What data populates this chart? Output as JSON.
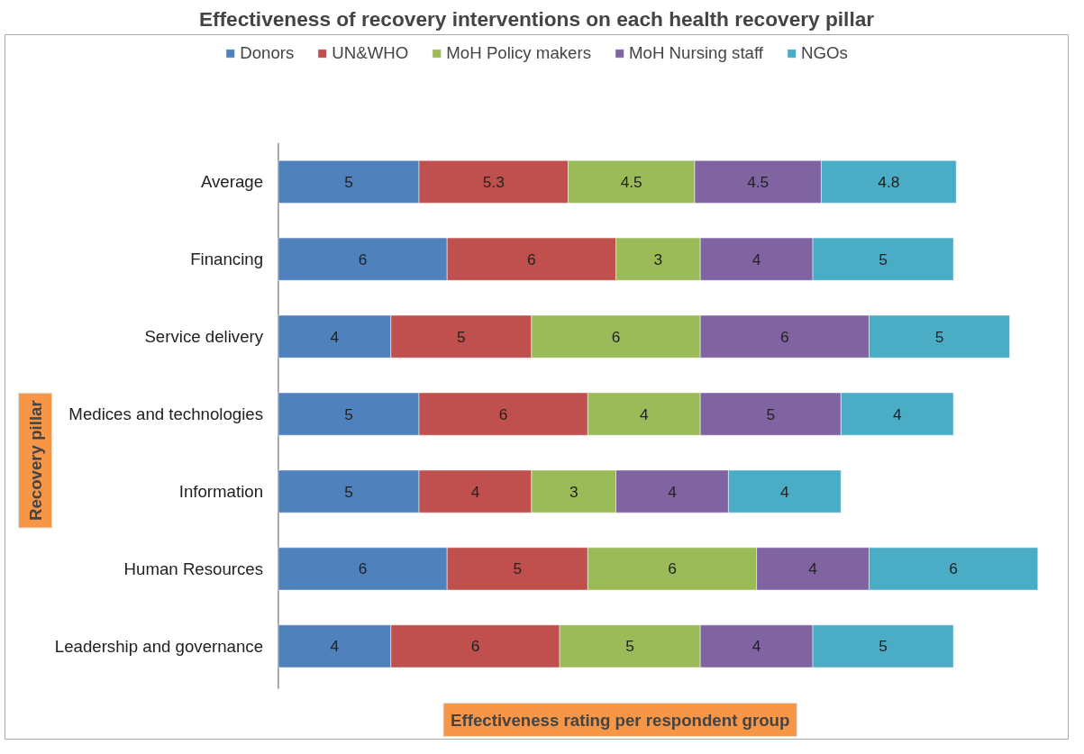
{
  "chart_data": {
    "type": "bar",
    "orientation": "horizontal",
    "stacked": true,
    "data_labels": true,
    "grid": false,
    "legend": "top",
    "title": "Effectiveness of recovery interventions on each health recovery pillar",
    "xlabel": "Effectiveness rating per respondent group",
    "ylabel": "Recovery pillar",
    "categories": [
      "Average",
      "Financing",
      "Service delivery",
      "Medices and technologies",
      "Information",
      "Human Resources",
      "Leadership and governance"
    ],
    "series": [
      {
        "name": "Donors",
        "color": "#4f81bd",
        "values": [
          5,
          6,
          4,
          5,
          5,
          6,
          4
        ]
      },
      {
        "name": "UN&WHO",
        "color": "#c0504d",
        "values": [
          5.3,
          6,
          5,
          6,
          4,
          5,
          6
        ]
      },
      {
        "name": "MoH Policy makers",
        "color": "#9bbb59",
        "values": [
          4.5,
          3,
          6,
          4,
          3,
          6,
          5
        ]
      },
      {
        "name": "MoH Nursing staff",
        "color": "#8064a2",
        "values": [
          4.5,
          4,
          6,
          5,
          4,
          4,
          4
        ]
      },
      {
        "name": "NGOs",
        "color": "#4bacc6",
        "values": [
          4.8,
          5,
          5,
          4,
          4,
          6,
          5
        ]
      }
    ]
  }
}
